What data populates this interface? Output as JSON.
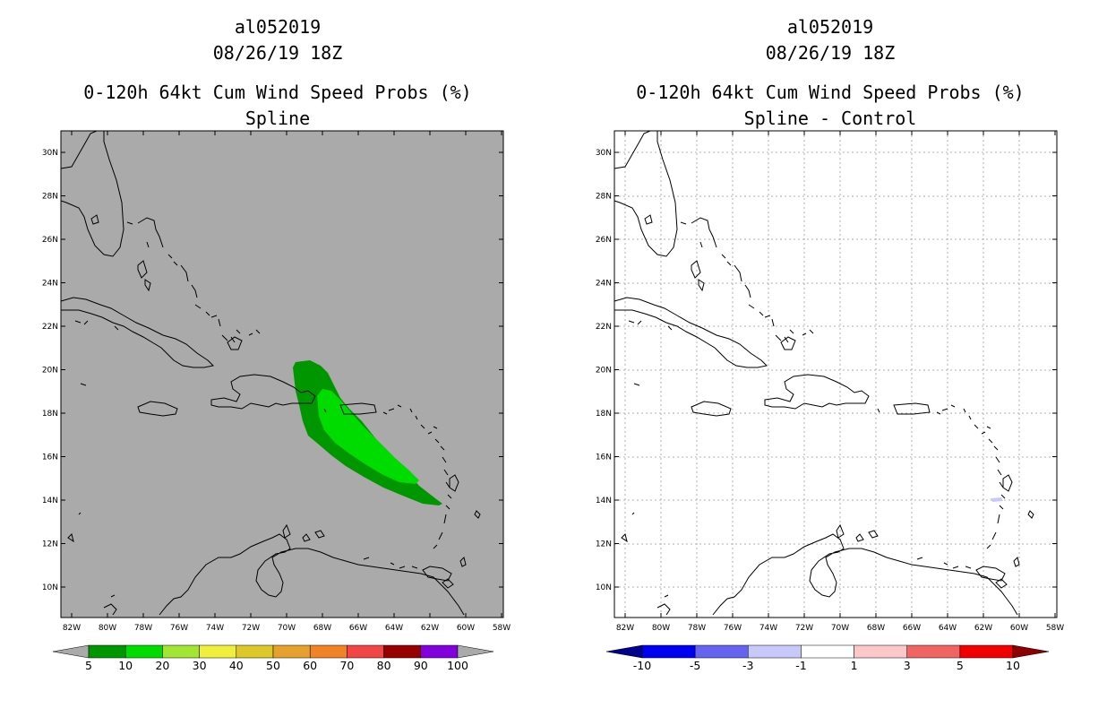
{
  "left_panel": {
    "storm_id": "al052019",
    "datetime": "08/26/19 18Z",
    "product": "0-120h 64kt Cum Wind Speed Probs (%)",
    "subtitle": "Spline",
    "colorbar": {
      "labels": [
        "5",
        "10",
        "20",
        "30",
        "40",
        "50",
        "60",
        "70",
        "80",
        "90",
        "100"
      ],
      "colors": [
        "#aaaaaa",
        "#009600",
        "#00dc00",
        "#a0e632",
        "#f0f03c",
        "#dcc828",
        "#e6a02d",
        "#f08228",
        "#f04646",
        "#960000",
        "#8200dc",
        "#aaaaaa"
      ]
    }
  },
  "right_panel": {
    "storm_id": "al052019",
    "datetime": "08/26/19 18Z",
    "product": "0-120h 64kt Cum Wind Speed Probs (%)",
    "subtitle": "Spline - Control",
    "colorbar": {
      "labels": [
        "-10",
        "-5",
        "-3",
        "-1",
        "1",
        "3",
        "5",
        "10"
      ],
      "colors": [
        "#00008c",
        "#0000f0",
        "#6464f0",
        "#c8c8fa",
        "#ffffff",
        "#fac8c8",
        "#f06464",
        "#f00000",
        "#8c0000"
      ]
    }
  },
  "map": {
    "lon_labels": [
      "82W",
      "80W",
      "78W",
      "76W",
      "74W",
      "72W",
      "70W",
      "68W",
      "66W",
      "64W",
      "62W",
      "60W",
      "58W"
    ],
    "lat_labels": [
      "10N",
      "12N",
      "14N",
      "16N",
      "18N",
      "20N",
      "22N",
      "24N",
      "26N",
      "28N",
      "30N"
    ],
    "left_background": "#aaaaaa",
    "right_background": "#ffffff"
  }
}
